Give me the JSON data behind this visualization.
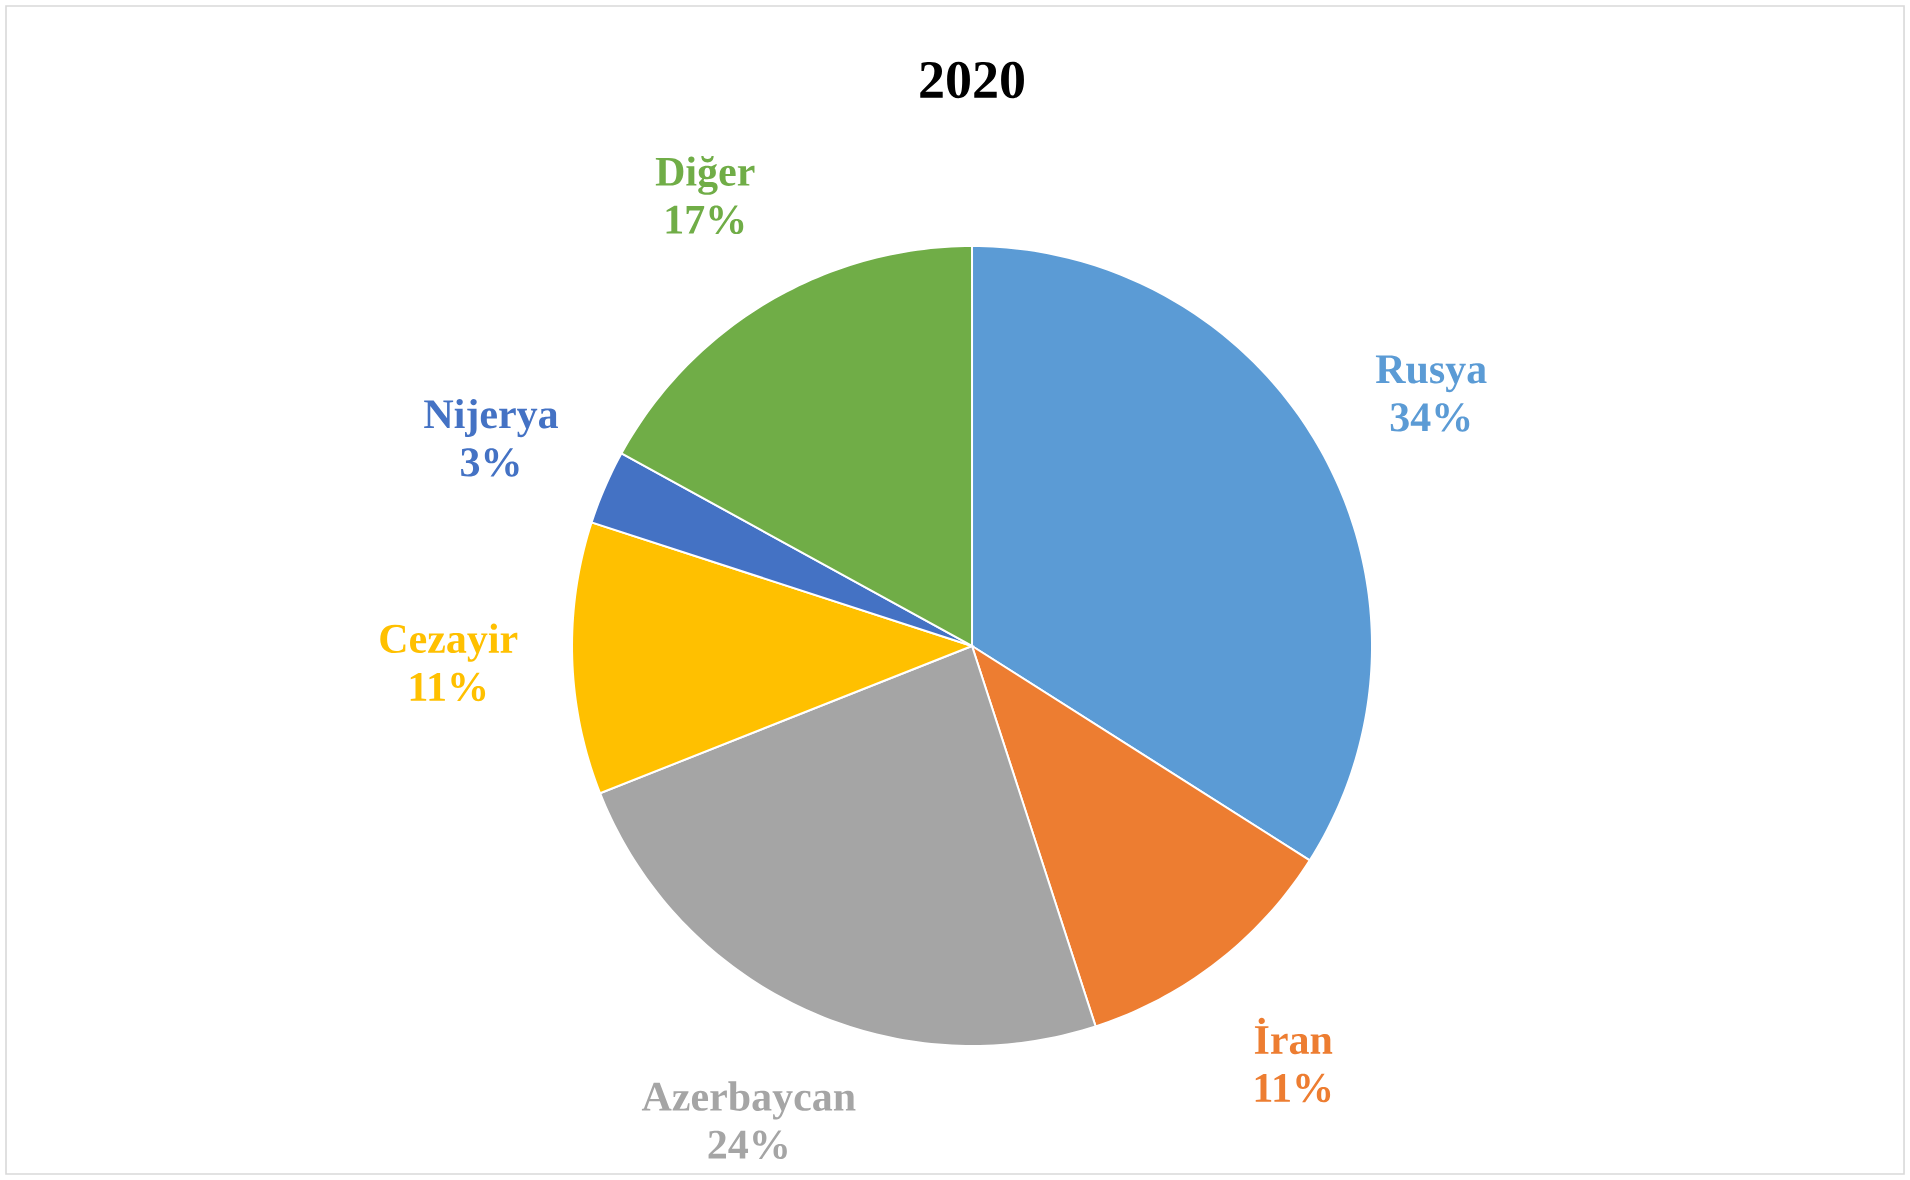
{
  "chart_data": {
    "type": "pie",
    "title": "2020",
    "categories": [
      "Rusya",
      "İran",
      "Azerbaycan",
      "Cezayir",
      "Nijerya",
      "Diğer"
    ],
    "values": [
      34,
      11,
      24,
      11,
      3,
      17
    ],
    "value_labels": [
      "34%",
      "11%",
      "24%",
      "11%",
      "3%",
      "17%"
    ],
    "colors": [
      "#5b9bd5",
      "#ed7d31",
      "#a5a5a5",
      "#ffc000",
      "#4472c4",
      "#70ad47"
    ]
  }
}
